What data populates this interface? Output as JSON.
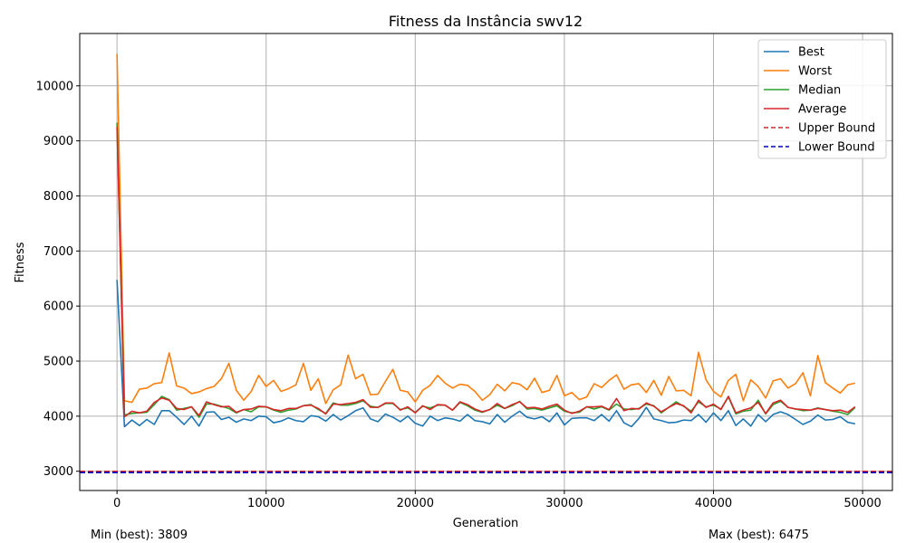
{
  "chart_data": {
    "type": "line",
    "title": "Fitness da Instância swv12",
    "xlabel": "Generation",
    "ylabel": "Fitness",
    "xlim": [
      -2500,
      52000
    ],
    "ylim": [
      2650,
      10950
    ],
    "xticks": [
      0,
      10000,
      20000,
      30000,
      40000,
      50000
    ],
    "yticks": [
      3000,
      4000,
      5000,
      6000,
      7000,
      8000,
      9000,
      10000
    ],
    "grid": true,
    "legend_position": "top-right",
    "x": [
      0,
      500,
      1000,
      1500,
      2000,
      2500,
      3000,
      3500,
      4000,
      4500,
      5000,
      5500,
      6000,
      6500,
      7000,
      7500,
      8000,
      8500,
      9000,
      9500,
      10000,
      10500,
      11000,
      11500,
      12000,
      12500,
      13000,
      13500,
      14000,
      14500,
      15000,
      15500,
      16000,
      16500,
      17000,
      17500,
      18000,
      18500,
      19000,
      19500,
      20000,
      20500,
      21000,
      21500,
      22000,
      22500,
      23000,
      23500,
      24000,
      24500,
      25000,
      25500,
      26000,
      26500,
      27000,
      27500,
      28000,
      28500,
      29000,
      29500,
      30000,
      30500,
      31000,
      31500,
      32000,
      32500,
      33000,
      33500,
      34000,
      34500,
      35000,
      35500,
      36000,
      36500,
      37000,
      37500,
      38000,
      38500,
      39000,
      39500,
      40000,
      40500,
      41000,
      41500,
      42000,
      42500,
      43000,
      43500,
      44000,
      44500,
      45000,
      45500,
      46000,
      46500,
      47000,
      47500,
      48000,
      48500,
      49000,
      49500
    ],
    "series": [
      {
        "name": "Best",
        "color": "#1f77b4",
        "style": "solid",
        "values": [
          6475,
          3809,
          3930,
          3830,
          3940,
          3850,
          4100,
          4100,
          3980,
          3850,
          4000,
          3820,
          4070,
          4080,
          3940,
          3980,
          3890,
          3950,
          3920,
          4000,
          3990,
          3880,
          3910,
          3970,
          3920,
          3900,
          4010,
          3990,
          3910,
          4030,
          3930,
          4010,
          4100,
          4150,
          3950,
          3900,
          4040,
          3980,
          3900,
          4000,
          3870,
          3820,
          4000,
          3920,
          3970,
          3950,
          3910,
          4030,
          3920,
          3900,
          3860,
          4030,
          3890,
          4000,
          4090,
          3980,
          3950,
          3990,
          3900,
          4060,
          3840,
          3960,
          3970,
          3970,
          3920,
          4030,
          3910,
          4100,
          3880,
          3810,
          3960,
          4160,
          3950,
          3920,
          3880,
          3890,
          3930,
          3920,
          4030,
          3890,
          4060,
          3920,
          4100,
          3830,
          3950,
          3820,
          4030,
          3900,
          4030,
          4080,
          4030,
          3940,
          3850,
          3910,
          4020,
          3930,
          3940,
          3990,
          3890,
          3860
        ]
      },
      {
        "name": "Worst",
        "color": "#ff7f0e",
        "style": "solid",
        "values": [
          10580,
          4280,
          4250,
          4490,
          4510,
          4590,
          4610,
          5150,
          4550,
          4510,
          4410,
          4440,
          4500,
          4540,
          4680,
          4960,
          4470,
          4290,
          4450,
          4740,
          4540,
          4650,
          4450,
          4500,
          4570,
          4960,
          4470,
          4680,
          4230,
          4480,
          4570,
          5110,
          4680,
          4760,
          4390,
          4400,
          4630,
          4850,
          4470,
          4440,
          4260,
          4470,
          4560,
          4740,
          4600,
          4510,
          4580,
          4560,
          4450,
          4290,
          4390,
          4580,
          4460,
          4610,
          4580,
          4480,
          4690,
          4430,
          4470,
          4740,
          4370,
          4430,
          4300,
          4350,
          4590,
          4520,
          4650,
          4750,
          4490,
          4570,
          4590,
          4430,
          4650,
          4380,
          4720,
          4460,
          4470,
          4370,
          5160,
          4660,
          4450,
          4350,
          4650,
          4760,
          4280,
          4660,
          4540,
          4330,
          4640,
          4680,
          4510,
          4590,
          4790,
          4370,
          5100,
          4610,
          4510,
          4420,
          4570,
          4600
        ]
      },
      {
        "name": "Median",
        "color": "#2ca02c",
        "style": "solid",
        "values": [
          9330,
          4020,
          4050,
          4060,
          4070,
          4210,
          4360,
          4300,
          4110,
          4140,
          4170,
          3980,
          4220,
          4220,
          4180,
          4140,
          4060,
          4120,
          4080,
          4170,
          4170,
          4110,
          4070,
          4110,
          4130,
          4190,
          4210,
          4120,
          4050,
          4240,
          4200,
          4200,
          4230,
          4280,
          4180,
          4160,
          4230,
          4230,
          4120,
          4150,
          4070,
          4180,
          4150,
          4200,
          4200,
          4110,
          4250,
          4190,
          4110,
          4070,
          4120,
          4200,
          4140,
          4190,
          4270,
          4130,
          4140,
          4110,
          4150,
          4190,
          4090,
          4060,
          4070,
          4170,
          4130,
          4170,
          4110,
          4220,
          4130,
          4120,
          4140,
          4220,
          4190,
          4060,
          4160,
          4260,
          4180,
          4090,
          4260,
          4170,
          4200,
          4130,
          4350,
          4040,
          4090,
          4110,
          4290,
          4040,
          4210,
          4270,
          4160,
          4130,
          4100,
          4110,
          4150,
          4120,
          4090,
          4070,
          4030,
          4160
        ]
      },
      {
        "name": "Average",
        "color": "#d62728",
        "style": "solid",
        "values": [
          9250,
          3990,
          4090,
          4060,
          4090,
          4250,
          4330,
          4290,
          4140,
          4120,
          4170,
          4010,
          4260,
          4210,
          4170,
          4180,
          4070,
          4120,
          4130,
          4180,
          4170,
          4120,
          4100,
          4140,
          4140,
          4190,
          4200,
          4140,
          4040,
          4220,
          4210,
          4230,
          4250,
          4300,
          4160,
          4160,
          4240,
          4240,
          4110,
          4170,
          4060,
          4190,
          4120,
          4210,
          4200,
          4110,
          4260,
          4210,
          4130,
          4080,
          4120,
          4230,
          4140,
          4210,
          4260,
          4150,
          4160,
          4130,
          4180,
          4220,
          4110,
          4050,
          4090,
          4170,
          4170,
          4180,
          4120,
          4320,
          4100,
          4140,
          4130,
          4240,
          4180,
          4080,
          4160,
          4230,
          4190,
          4060,
          4290,
          4160,
          4220,
          4120,
          4360,
          4060,
          4110,
          4150,
          4250,
          4050,
          4240,
          4290,
          4160,
          4130,
          4120,
          4110,
          4140,
          4120,
          4100,
          4110,
          4070,
          4170
        ]
      }
    ],
    "bounds": [
      {
        "name": "Upper Bound",
        "color": "#d62728",
        "style": "dashed",
        "value": 2998
      },
      {
        "name": "Lower Bound",
        "color": "#0000cc",
        "style": "dashed",
        "value": 2975
      }
    ],
    "footer": {
      "min_text": "Min (best): 3809",
      "max_text": "Max (best): 6475"
    }
  }
}
